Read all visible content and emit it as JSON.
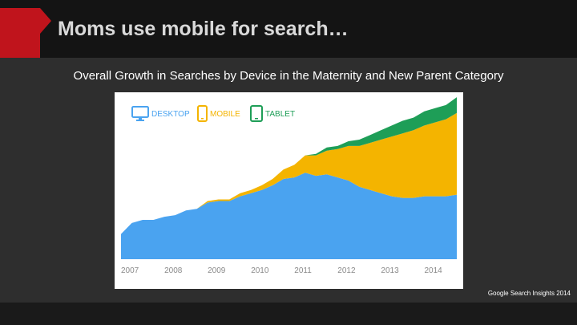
{
  "slide": {
    "title": "Moms use mobile for search…",
    "subtitle": "Overall Growth in Searches by Device in the Maternity and New Parent Category",
    "source": "Google Search Insights 2014"
  },
  "colors": {
    "desktop": "#4aa3f0",
    "mobile": "#f4b400",
    "tablet": "#1e9e57",
    "accent": "#c0141c"
  },
  "chart_data": {
    "type": "area",
    "stacked": true,
    "x_ticks": [
      "2007",
      "2008",
      "2009",
      "2010",
      "2011",
      "2012",
      "2013",
      "2014"
    ],
    "x_range": [
      2007,
      2014.75
    ],
    "y_range": [
      0,
      100
    ],
    "legend_placement": "top-left",
    "grid": false,
    "x": [
      2007,
      2007.25,
      2007.5,
      2007.75,
      2008,
      2008.25,
      2008.5,
      2008.75,
      2009,
      2009.25,
      2009.5,
      2009.75,
      2010,
      2010.25,
      2010.5,
      2010.75,
      2011,
      2011.25,
      2011.5,
      2011.75,
      2012,
      2012.25,
      2012.5,
      2012.75,
      2013,
      2013.25,
      2013.5,
      2013.75,
      2014,
      2014.25,
      2014.5,
      2014.75
    ],
    "series": [
      {
        "name": "DESKTOP",
        "icon": "desktop-icon",
        "values": [
          16,
          23,
          25,
          25,
          27,
          28,
          31,
          32,
          36,
          37,
          37,
          40,
          42,
          44,
          47,
          51,
          52,
          55,
          53,
          54,
          52,
          50,
          46,
          44,
          42,
          40,
          39,
          39,
          40,
          40,
          40,
          41
        ]
      },
      {
        "name": "MOBILE",
        "icon": "mobile-icon",
        "values": [
          0,
          0,
          0,
          0,
          0,
          0,
          0,
          0,
          1,
          1,
          1,
          2,
          2,
          3,
          4,
          6,
          8,
          11,
          13,
          15,
          18,
          22,
          26,
          30,
          34,
          38,
          41,
          43,
          45,
          47,
          49,
          52
        ]
      },
      {
        "name": "TABLET",
        "icon": "tablet-icon",
        "values": [
          0,
          0,
          0,
          0,
          0,
          0,
          0,
          0,
          0,
          0,
          0,
          0,
          0,
          0,
          0,
          0,
          0,
          0,
          1,
          2,
          2,
          3,
          4,
          5,
          6,
          7,
          8,
          8,
          9,
          9,
          9,
          10
        ]
      }
    ]
  }
}
